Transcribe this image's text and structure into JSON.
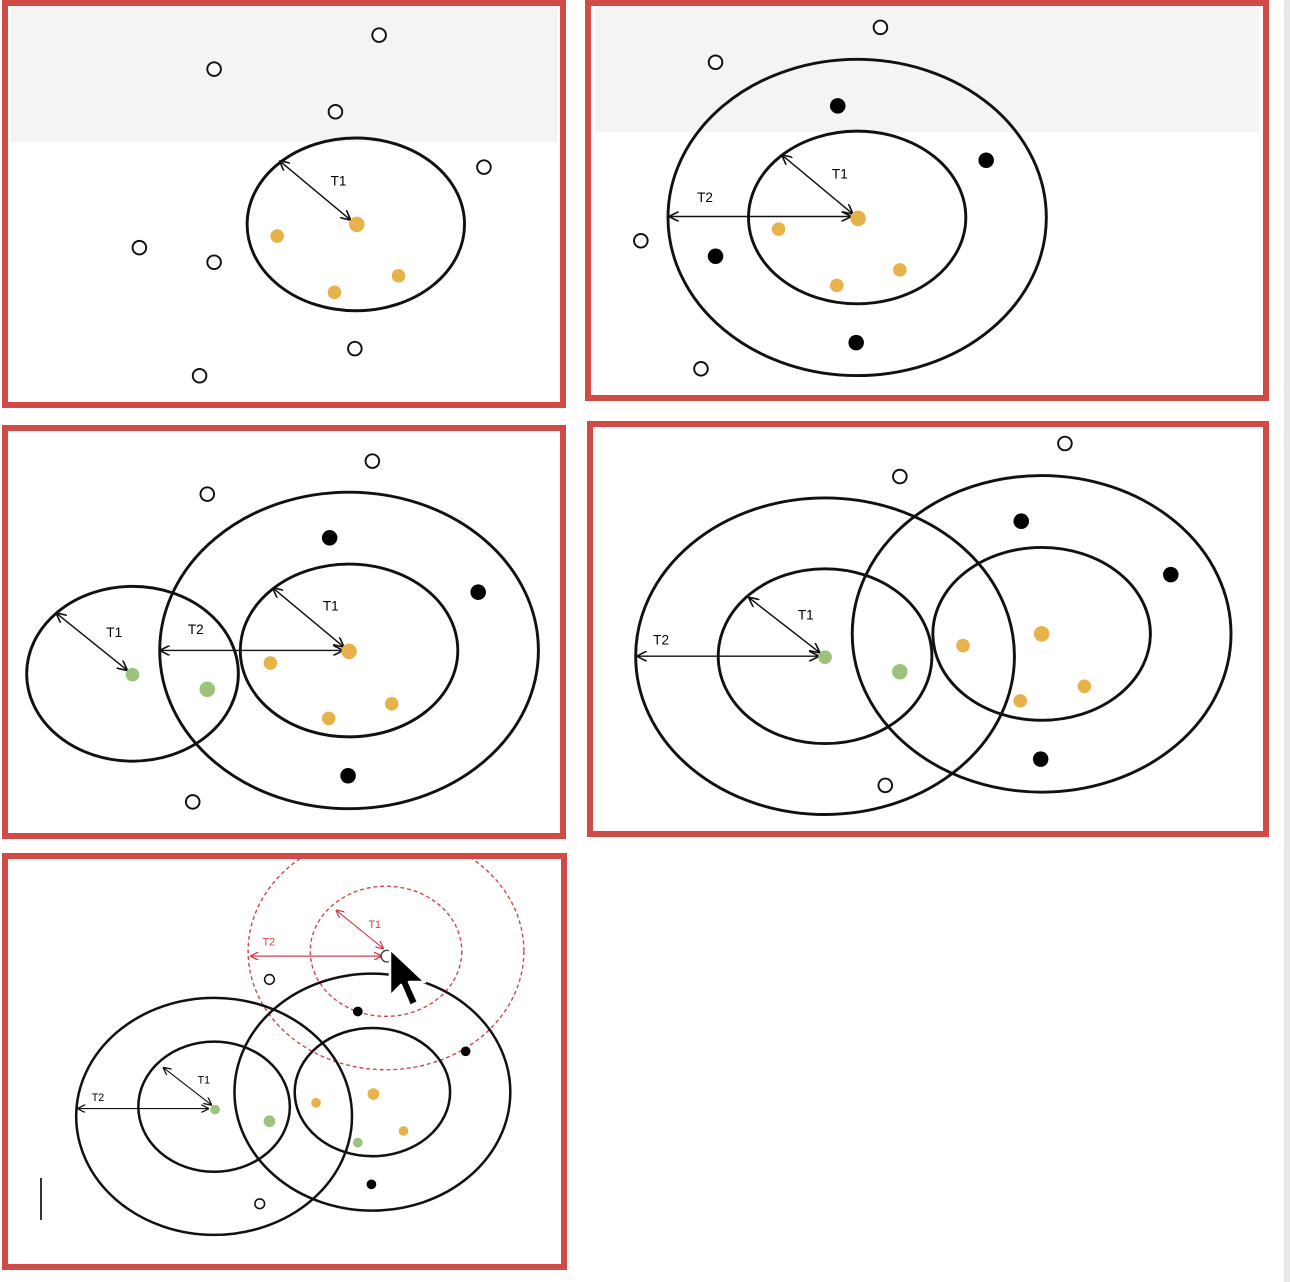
{
  "colors": {
    "frame": "#d24a46",
    "outline": "#111111",
    "orange_point": "#e8b24a",
    "green_point": "#9dc27c",
    "black_point": "#000000",
    "dashed_red": "#d04048"
  },
  "labels": {
    "t1": "T1",
    "t2": "T2"
  },
  "icons": {
    "cursor": "mouse-pointer-icon"
  }
}
